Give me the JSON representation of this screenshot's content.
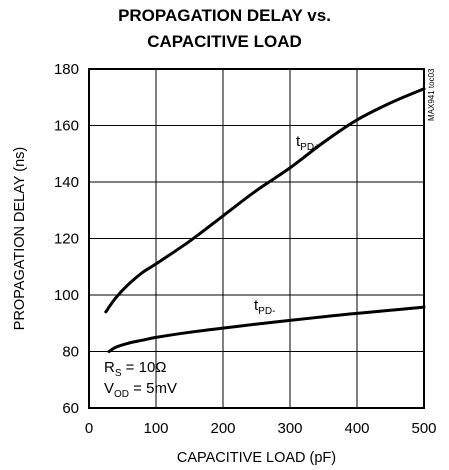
{
  "chart_data": {
    "type": "line",
    "title_line1": "PROPAGATION DELAY vs.",
    "title_line2": "CAPACITIVE LOAD",
    "xlabel": "CAPACITIVE LOAD (pF)",
    "ylabel": "PROPAGATION DELAY (ns)",
    "xlim": [
      0,
      500
    ],
    "ylim": [
      60,
      180
    ],
    "xticks": [
      0,
      100,
      200,
      300,
      400,
      500
    ],
    "yticks": [
      60,
      80,
      100,
      120,
      140,
      160,
      180
    ],
    "grid": true,
    "series": [
      {
        "name_main": "t",
        "name_sub": "PD+",
        "x": [
          25,
          40,
          60,
          80,
          100,
          150,
          200,
          250,
          300,
          350,
          400,
          450,
          500
        ],
        "y": [
          94,
          99,
          104,
          108,
          111,
          119,
          128,
          137,
          145,
          154,
          162,
          168,
          173
        ]
      },
      {
        "name_main": "t",
        "name_sub": "PD-",
        "x": [
          30,
          40,
          60,
          80,
          100,
          150,
          200,
          250,
          300,
          350,
          400,
          450,
          500
        ],
        "y": [
          80,
          81.5,
          83,
          84,
          85,
          86.8,
          88.3,
          89.7,
          91,
          92.3,
          93.5,
          94.6,
          95.7
        ]
      }
    ],
    "annotations": {
      "rs_main": "R",
      "rs_sub": "S",
      "rs_value": " = 10Ω",
      "vod_main": "V",
      "vod_sub": "OD",
      "vod_value": " = 5mV"
    },
    "watermark": "MAX941 toc03"
  }
}
